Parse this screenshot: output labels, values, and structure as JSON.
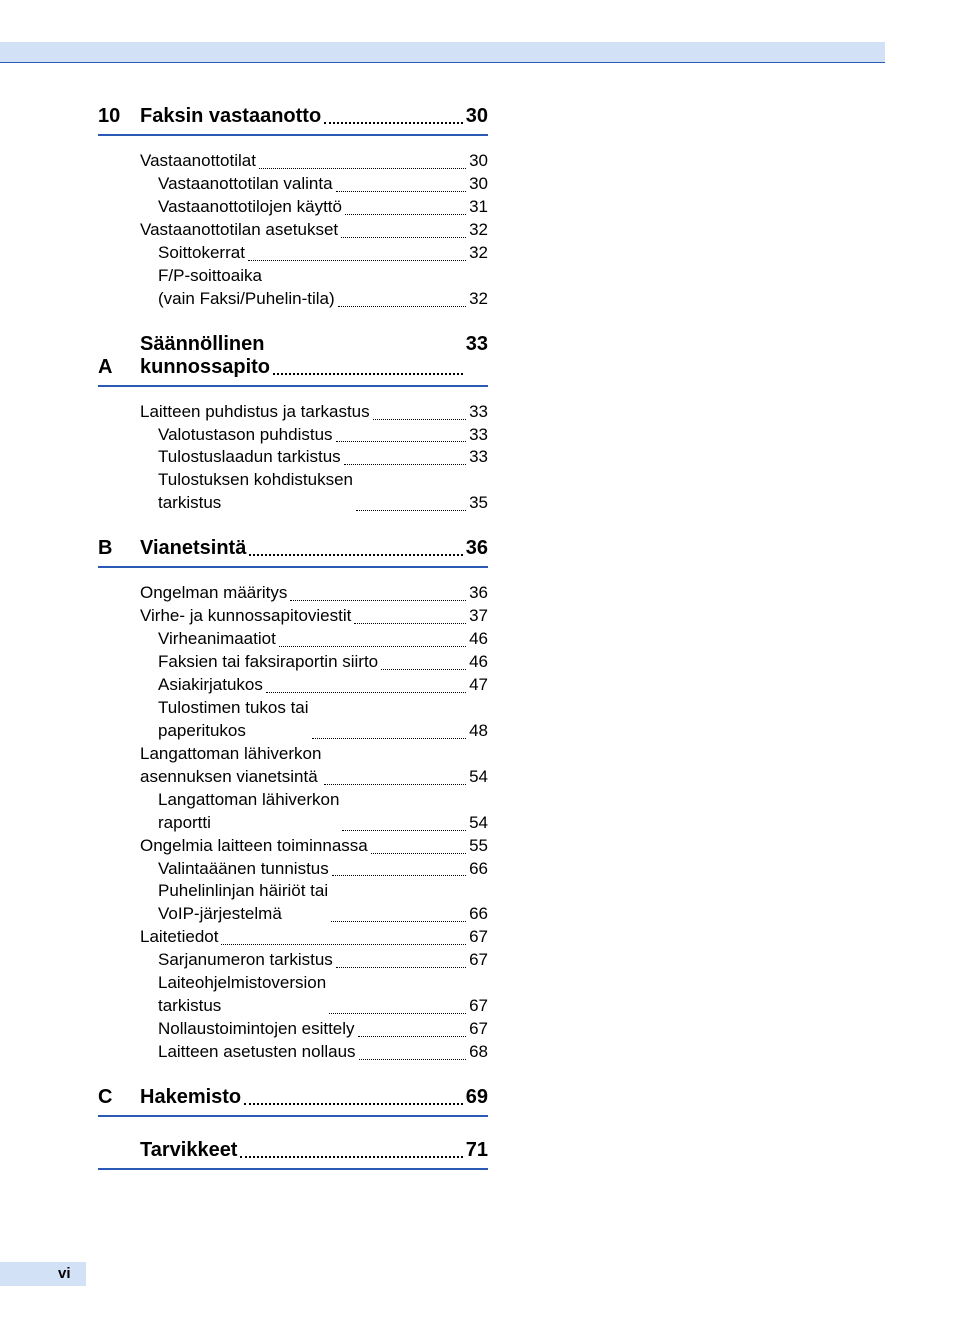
{
  "colors": {
    "accent": "#2a5ab5",
    "header_bg": "#d3e1f7",
    "text": "#000000",
    "page_bg": "#ffffff"
  },
  "typography": {
    "section_fontsize": 20,
    "entry_fontsize": 17,
    "font_family": "Arial"
  },
  "page_number": "vi",
  "sections": [
    {
      "marker": "10",
      "title": "Faksin vastaanotto",
      "page": "30",
      "entries": [
        {
          "level": 0,
          "title": "Vastaanottotilat",
          "page": "30"
        },
        {
          "level": 1,
          "title": "Vastaanottotilan valinta",
          "page": "30"
        },
        {
          "level": 1,
          "title": "Vastaanottotilojen käyttö",
          "page": "31"
        },
        {
          "level": 0,
          "title": "Vastaanottotilan asetukset",
          "page": "32"
        },
        {
          "level": 1,
          "title": "Soittokerrat",
          "page": "32"
        },
        {
          "level": 1,
          "title": "F/P-soittoaika\n(vain Faksi/Puhelin-tila)",
          "page": "32"
        }
      ]
    },
    {
      "marker": "A",
      "title": "Säännöllinen\nkunnossapito",
      "page": "33",
      "entries": [
        {
          "level": 0,
          "title": "Laitteen puhdistus ja tarkastus",
          "page": "33"
        },
        {
          "level": 1,
          "title": "Valotustason puhdistus",
          "page": "33"
        },
        {
          "level": 1,
          "title": "Tulostuslaadun tarkistus",
          "page": "33"
        },
        {
          "level": 1,
          "title": "Tulostuksen kohdistuksen\ntarkistus",
          "page": "35"
        }
      ]
    },
    {
      "marker": "B",
      "title": "Vianetsintä",
      "page": "36",
      "entries": [
        {
          "level": 0,
          "title": "Ongelman määritys",
          "page": "36"
        },
        {
          "level": 0,
          "title": "Virhe- ja kunnossapitoviestit",
          "page": "37"
        },
        {
          "level": 1,
          "title": "Virheanimaatiot",
          "page": "46"
        },
        {
          "level": 1,
          "title": "Faksien tai faksiraportin siirto",
          "page": "46"
        },
        {
          "level": 1,
          "title": "Asiakirjatukos",
          "page": "47"
        },
        {
          "level": 1,
          "title": "Tulostimen tukos tai\npaperitukos",
          "page": "48"
        },
        {
          "level": 0,
          "title": "Langattoman lähiverkon\nasennuksen vianetsintä",
          "page": "54"
        },
        {
          "level": 1,
          "title": "Langattoman lähiverkon\nraportti",
          "page": "54"
        },
        {
          "level": 0,
          "title": "Ongelmia laitteen toiminnassa",
          "page": "55"
        },
        {
          "level": 1,
          "title": "Valintaäänen tunnistus",
          "page": "66"
        },
        {
          "level": 1,
          "title": "Puhelinlinjan häiriöt tai\nVoIP-järjestelmä",
          "page": "66"
        },
        {
          "level": 0,
          "title": "Laitetiedot",
          "page": "67"
        },
        {
          "level": 1,
          "title": "Sarjanumeron tarkistus",
          "page": "67"
        },
        {
          "level": 1,
          "title": "Laiteohjelmistoversion\ntarkistus",
          "page": "67"
        },
        {
          "level": 1,
          "title": "Nollaustoimintojen esittely",
          "page": "67"
        },
        {
          "level": 1,
          "title": "Laitteen asetusten nollaus",
          "page": "68"
        }
      ]
    },
    {
      "marker": "C",
      "title": "Hakemisto",
      "page": "69",
      "entries": []
    },
    {
      "marker": "",
      "title": "Tarvikkeet",
      "page": "71",
      "entries": []
    }
  ]
}
